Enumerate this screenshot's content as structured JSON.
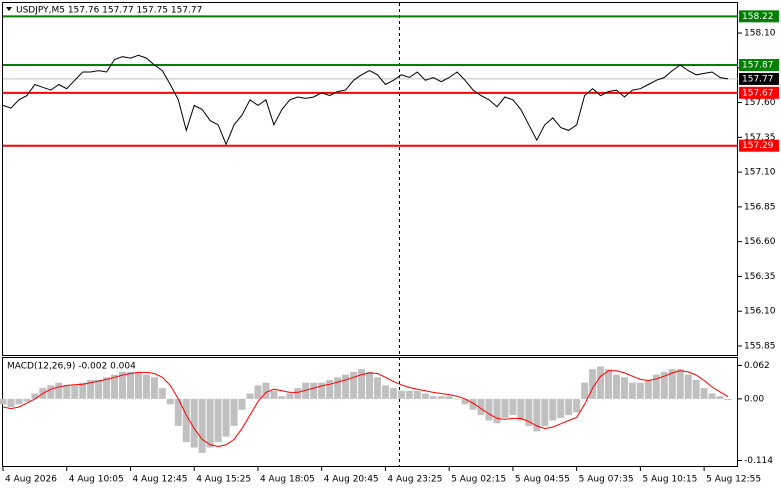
{
  "chart_data": [
    {
      "type": "line",
      "title": "USDJPY,M5  157.76 157.77 157.75 157.77",
      "color": "#000000",
      "x": [
        0,
        4,
        8,
        12,
        16,
        20,
        24,
        28,
        32,
        36,
        40,
        44,
        48,
        52,
        56,
        60,
        64,
        68,
        72,
        76,
        80,
        84,
        88,
        92,
        96,
        100,
        104,
        108,
        112,
        116,
        120,
        124,
        128,
        132,
        136,
        140,
        144,
        148,
        152,
        156,
        160,
        164,
        168,
        172,
        176,
        180,
        184,
        188,
        192,
        196,
        200,
        204,
        208,
        212,
        216,
        220,
        224,
        228,
        232,
        236,
        240,
        244,
        248,
        252,
        256,
        260,
        264,
        268,
        272,
        276,
        280,
        284,
        288,
        292,
        296,
        300,
        304,
        308,
        312,
        316,
        320,
        324,
        328,
        332,
        336,
        340,
        344,
        348,
        352,
        356,
        360,
        364
      ],
      "values": [
        157.58,
        157.56,
        157.62,
        157.65,
        157.73,
        157.71,
        157.69,
        157.73,
        157.7,
        157.76,
        157.82,
        157.82,
        157.83,
        157.82,
        157.91,
        157.93,
        157.92,
        157.94,
        157.92,
        157.87,
        157.83,
        157.73,
        157.62,
        157.4,
        157.58,
        157.55,
        157.47,
        157.44,
        157.3,
        157.44,
        157.51,
        157.62,
        157.58,
        157.62,
        157.44,
        157.55,
        157.62,
        157.64,
        157.63,
        157.64,
        157.67,
        157.65,
        157.68,
        157.69,
        157.76,
        157.8,
        157.83,
        157.8,
        157.73,
        157.76,
        157.8,
        157.78,
        157.82,
        157.76,
        157.78,
        157.75,
        157.78,
        157.82,
        157.76,
        157.69,
        157.65,
        157.62,
        157.57,
        157.64,
        157.62,
        157.55,
        157.44,
        157.33,
        157.44,
        157.49,
        157.42,
        157.4,
        157.44,
        157.65,
        157.7,
        157.65,
        157.68,
        157.69,
        157.64,
        157.69,
        157.7,
        157.73,
        157.76,
        157.78,
        157.83,
        157.87,
        157.83,
        157.8,
        157.81,
        157.82,
        157.78,
        157.77
      ],
      "xlim": [
        0,
        368
      ],
      "xticks": [
        {
          "value": 0,
          "label": "4 Aug 2026"
        },
        {
          "value": 32,
          "label": "4 Aug 10:05"
        },
        {
          "value": 64,
          "label": "4 Aug 12:45"
        },
        {
          "value": 96,
          "label": "4 Aug 15:25"
        },
        {
          "value": 128,
          "label": "4 Aug 18:05"
        },
        {
          "value": 160,
          "label": "4 Aug 20:45"
        },
        {
          "value": 192,
          "label": "4 Aug 23:25"
        },
        {
          "value": 224,
          "label": "5 Aug 02:15"
        },
        {
          "value": 256,
          "label": "5 Aug 04:55"
        },
        {
          "value": 288,
          "label": "5 Aug 07:35"
        },
        {
          "value": 320,
          "label": "5 Aug 10:15"
        },
        {
          "value": 352,
          "label": "5 Aug 12:55"
        }
      ],
      "ylim": [
        155.785,
        158.316
      ],
      "yticks": [
        {
          "value": 158.1,
          "label": "158.10"
        },
        {
          "value": 157.85,
          "label": "157.85"
        },
        {
          "value": 157.6,
          "label": "157.60"
        },
        {
          "value": 157.35,
          "label": "157.35"
        },
        {
          "value": 157.1,
          "label": "157.10"
        },
        {
          "value": 156.85,
          "label": "156.85"
        },
        {
          "value": 156.6,
          "label": "156.60"
        },
        {
          "value": 156.35,
          "label": "156.35"
        },
        {
          "value": 156.1,
          "label": "156.10"
        },
        {
          "value": 155.85,
          "label": "155.85"
        }
      ],
      "levels": [
        {
          "value": 158.22,
          "color": "#008000"
        },
        {
          "value": 157.87,
          "color": "#008000"
        },
        {
          "value": 157.67,
          "color": "#ff0000"
        },
        {
          "value": 157.29,
          "color": "#ff0000"
        }
      ],
      "current_price": 157.77
    },
    {
      "type": "macd",
      "title": "MACD(12,26,9) -0.002 0.004",
      "color": "#c0c0c0",
      "signal_color": "#ff0000",
      "histogram": [
        -0.01,
        -0.015,
        -0.01,
        -0.005,
        0.01,
        0.02,
        0.025,
        0.03,
        0.025,
        0.025,
        0.03,
        0.035,
        0.035,
        0.04,
        0.045,
        0.05,
        0.05,
        0.05,
        0.045,
        0.04,
        0.02,
        -0.01,
        -0.05,
        -0.08,
        -0.09,
        -0.1,
        -0.09,
        -0.08,
        -0.07,
        -0.05,
        -0.02,
        0.01,
        0.025,
        0.03,
        0.015,
        0.005,
        0.01,
        0.02,
        0.03,
        0.03,
        0.03,
        0.035,
        0.04,
        0.045,
        0.05,
        0.055,
        0.05,
        0.04,
        0.025,
        0.02,
        0.015,
        0.015,
        0.015,
        0.01,
        0.005,
        0.005,
        0.005,
        0.0,
        -0.01,
        -0.02,
        -0.03,
        -0.04,
        -0.045,
        -0.035,
        -0.03,
        -0.04,
        -0.05,
        -0.06,
        -0.05,
        -0.04,
        -0.035,
        -0.03,
        -0.025,
        0.03,
        0.055,
        0.06,
        0.055,
        0.045,
        0.04,
        0.03,
        0.03,
        0.035,
        0.045,
        0.05,
        0.055,
        0.055,
        0.045,
        0.035,
        0.02,
        0.01,
        0.005,
        -0.002
      ],
      "signal": [
        -0.015,
        -0.018,
        -0.015,
        -0.008,
        0.0,
        0.01,
        0.018,
        0.022,
        0.025,
        0.026,
        0.027,
        0.03,
        0.033,
        0.036,
        0.04,
        0.044,
        0.047,
        0.049,
        0.049,
        0.047,
        0.04,
        0.025,
        0.0,
        -0.03,
        -0.055,
        -0.075,
        -0.085,
        -0.088,
        -0.085,
        -0.075,
        -0.055,
        -0.03,
        -0.005,
        0.012,
        0.018,
        0.015,
        0.012,
        0.012,
        0.016,
        0.02,
        0.024,
        0.027,
        0.031,
        0.035,
        0.04,
        0.045,
        0.048,
        0.047,
        0.04,
        0.032,
        0.026,
        0.021,
        0.018,
        0.015,
        0.012,
        0.01,
        0.008,
        0.005,
        0.0,
        -0.008,
        -0.018,
        -0.028,
        -0.036,
        -0.038,
        -0.036,
        -0.036,
        -0.042,
        -0.05,
        -0.055,
        -0.052,
        -0.046,
        -0.04,
        -0.034,
        -0.01,
        0.02,
        0.042,
        0.052,
        0.052,
        0.048,
        0.042,
        0.036,
        0.034,
        0.037,
        0.042,
        0.048,
        0.052,
        0.05,
        0.044,
        0.034,
        0.022,
        0.013,
        0.004
      ],
      "ylim": [
        -0.126,
        0.0775
      ],
      "yticks": [
        0.062,
        {
          "value": 0,
          "label": "0.00"
        },
        -0.114
      ]
    }
  ]
}
